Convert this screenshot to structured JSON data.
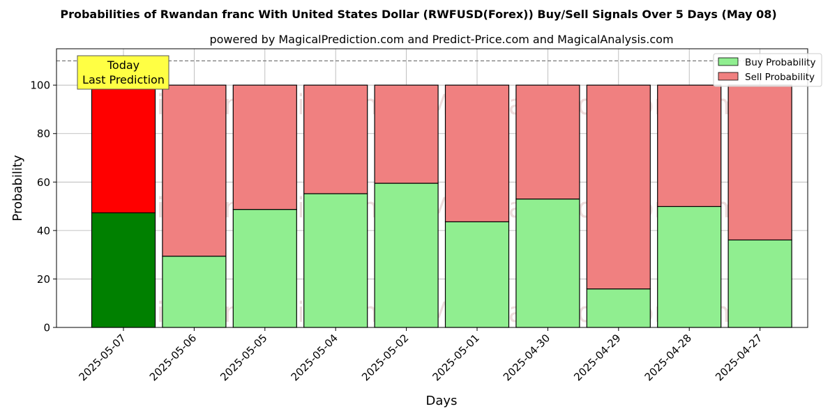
{
  "chart_data": {
    "type": "bar",
    "stacked": true,
    "title": "Probabilities of Rwandan franc With United States Dollar (RWFUSD(Forex)) Buy/Sell Signals Over 5 Days (May 08)",
    "subtitle": "powered by MagicalPrediction.com and Predict-Price.com and MagicalAnalysis.com",
    "xlabel": "Days",
    "ylabel": "Probability",
    "ylim": [
      0,
      115
    ],
    "yticks": [
      0,
      20,
      40,
      60,
      80,
      100
    ],
    "reference_line": 110,
    "grid": true,
    "legend_position": "top-right",
    "categories": [
      "2025-05-07",
      "2025-05-06",
      "2025-05-05",
      "2025-05-04",
      "2025-05-02",
      "2025-05-01",
      "2025-04-30",
      "2025-04-29",
      "2025-04-28",
      "2025-04-27"
    ],
    "series": [
      {
        "name": "Buy Probability",
        "values": [
          47.3,
          29.4,
          48.7,
          55.2,
          59.5,
          43.6,
          53.0,
          15.9,
          49.9,
          36.1
        ]
      },
      {
        "name": "Sell Probability",
        "values": [
          52.7,
          70.6,
          51.3,
          44.8,
          40.5,
          56.4,
          47.0,
          84.1,
          50.1,
          63.9
        ]
      }
    ],
    "highlight_index": 0,
    "annotation": {
      "line1": "Today",
      "line2": "Last Prediction"
    },
    "watermarks": [
      "MagicalAnalysis.com",
      "MagicalPrediction.com"
    ],
    "colors": {
      "buy": "#90ee90",
      "sell": "#f08080",
      "buy_highlight": "#008000",
      "sell_highlight": "#ff0000",
      "annotation_bg": "#ffff44"
    }
  }
}
